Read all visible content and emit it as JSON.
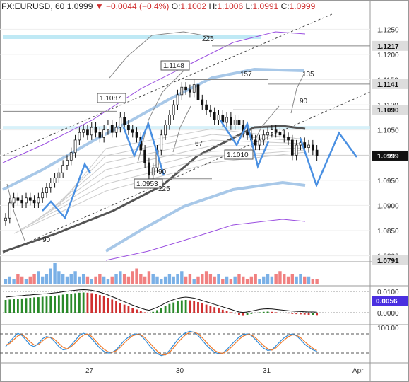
{
  "header": {
    "symbol": "FX:EURUSD, 60",
    "last": "1.0999",
    "arrow": "▼",
    "change": "−0.0044 (−0.4%)",
    "o_label": "O:",
    "o": "1.1002",
    "h_label": "H:",
    "h": "1.1006",
    "l_label": "L:",
    "l": "1.0991",
    "c_label": "C:",
    "c": "1.0999"
  },
  "chart_data": [
    {
      "type": "candlestick",
      "title": "FX:EURUSD, 60",
      "ylim": [
        1.0791,
        1.128
      ],
      "y_ticks": [
        "1.1250",
        "1.1200",
        "1.1150",
        "1.1100",
        "1.1050",
        "1.1000",
        "1.0950",
        "1.0900",
        "1.0850",
        "1.0800"
      ],
      "x_ticks": [
        "27",
        "30",
        "31",
        "Apr"
      ],
      "price_labels": [
        {
          "value": 1.1217,
          "text": "1.1217"
        },
        {
          "value": 1.1141,
          "text": "1.1141"
        },
        {
          "value": 1.109,
          "text": "1.1090"
        },
        {
          "value": 1.0999,
          "text": "1.0999",
          "current": true
        },
        {
          "value": 1.0791,
          "text": "1.0791"
        }
      ],
      "annotations": [
        {
          "text": "1.1148",
          "value": 1.1148
        },
        {
          "text": "1.1087",
          "value": 1.1087
        },
        {
          "text": "1.1010",
          "value": 1.101
        },
        {
          "text": "1.0953",
          "value": 1.0953
        }
      ],
      "cycle_labels": [
        "225",
        "157",
        "135",
        "90",
        "67",
        "90",
        "225",
        "90"
      ],
      "close": [
        1.0875,
        1.0905,
        1.0915,
        1.091,
        1.0905,
        1.0915,
        1.091,
        1.0905,
        1.0915,
        1.0925,
        1.0935,
        1.0945,
        1.0955,
        1.0965,
        1.098,
        1.099,
        1.1005,
        1.103,
        1.1045,
        1.105,
        1.104,
        1.1055,
        1.1045,
        1.1035,
        1.105,
        1.106,
        1.1045,
        1.1055,
        1.1075,
        1.106,
        1.105,
        1.1045,
        1.1035,
        1.101,
        1.0985,
        1.096,
        1.0975,
        1.101,
        1.104,
        1.106,
        1.108,
        1.11,
        1.112,
        1.1135,
        1.113,
        1.1125,
        1.114,
        1.111,
        1.11,
        1.109,
        1.1085,
        1.107,
        1.108,
        1.1065,
        1.1075,
        1.106,
        1.107,
        1.106,
        1.1045,
        1.104,
        1.103,
        1.102,
        1.103,
        1.104,
        1.1045,
        1.105,
        1.1045,
        1.104,
        1.1035,
        1.103,
        1.1,
        1.102,
        1.1025,
        1.1015,
        1.102,
        1.101,
        1.0999
      ],
      "series": [
        {
          "name": "Close",
          "values_ref": "close",
          "color": "#222222"
        }
      ]
    },
    {
      "type": "bar",
      "title": "",
      "values": [
        2,
        3,
        2,
        4,
        3,
        2,
        3,
        4,
        5,
        3,
        4,
        6,
        8,
        5,
        4,
        3,
        4,
        5,
        3,
        4,
        3,
        2,
        3,
        4,
        3,
        2,
        3,
        4,
        5,
        4,
        3,
        5,
        6,
        4,
        3,
        5,
        4,
        3,
        2,
        3,
        4,
        3,
        4,
        5,
        3,
        4,
        2,
        3,
        4,
        5,
        4,
        3,
        4,
        2,
        3,
        2,
        3,
        4,
        3,
        2,
        3,
        4,
        2,
        3,
        4,
        3,
        4,
        5,
        4,
        3,
        4,
        3,
        4,
        3,
        3,
        2,
        2
      ]
    },
    {
      "type": "bar",
      "title": "",
      "y_ticks": [
        "0.0100",
        "0.0000"
      ],
      "price_labels": [
        {
          "value": 0.0056,
          "text": "0.0056"
        }
      ],
      "values": [
        0.006,
        0.0062,
        0.0064,
        0.0066,
        0.0067,
        0.0069,
        0.007,
        0.0072,
        0.0073,
        0.0075,
        0.0076,
        0.0078,
        0.008,
        0.0082,
        0.0085,
        0.0088,
        0.009,
        0.0092,
        0.0094,
        0.0095,
        0.0094,
        0.0092,
        0.0088,
        0.0083,
        0.0077,
        0.007,
        0.0062,
        0.0055,
        0.0046,
        0.0038,
        0.003,
        0.0022,
        0.0015,
        0.0008,
        0.0002,
        -0.0002,
        0.0004,
        0.0012,
        0.0022,
        0.0032,
        0.0041,
        0.0048,
        0.0054,
        0.0058,
        0.006,
        0.0058,
        0.0055,
        0.005,
        0.0044,
        0.0038,
        0.0032,
        0.0026,
        0.002,
        0.0014,
        0.0008,
        0.0002,
        -0.0004,
        -0.001,
        -0.0012,
        -0.001,
        -0.0006,
        -0.0002,
        0.0002,
        0.0004,
        0.0005,
        0.0004,
        0.0002,
        0.0,
        -0.0002,
        -0.0004,
        -0.0006,
        -0.0007,
        -0.0008,
        -0.0009,
        -0.001,
        -0.001,
        -0.0011
      ]
    },
    {
      "type": "line",
      "title": "",
      "y_ticks": [
        "100.00"
      ],
      "series": [
        {
          "name": "",
          "color": "#2f8bd8",
          "values": [
            40,
            55,
            70,
            82,
            75,
            60,
            45,
            40,
            50,
            65,
            72,
            68,
            55,
            40,
            30,
            32,
            45,
            60,
            75,
            82,
            78,
            65,
            50,
            35,
            25,
            20,
            22,
            30,
            45,
            60,
            70,
            78,
            80,
            75,
            62,
            45,
            30,
            18,
            12,
            15,
            28,
            45,
            62,
            75,
            84,
            88,
            85,
            75,
            60,
            45,
            32,
            22,
            18,
            20,
            30,
            45,
            58,
            70,
            78,
            80,
            75,
            62,
            48,
            35,
            28,
            30,
            42,
            56,
            68,
            76,
            80,
            74,
            62,
            48,
            38,
            30,
            25
          ]
        },
        {
          "name": "",
          "color": "#f07a2a",
          "values": [
            45,
            50,
            62,
            74,
            78,
            68,
            55,
            45,
            46,
            58,
            68,
            70,
            62,
            50,
            38,
            33,
            40,
            52,
            66,
            76,
            80,
            72,
            58,
            44,
            32,
            24,
            22,
            27,
            38,
            52,
            64,
            74,
            78,
            77,
            68,
            54,
            40,
            26,
            16,
            14,
            22,
            36,
            52,
            66,
            78,
            85,
            86,
            80,
            68,
            54,
            40,
            28,
            21,
            19,
            25,
            37,
            50,
            63,
            73,
            78,
            77,
            68,
            56,
            43,
            33,
            29,
            36,
            49,
            61,
            71,
            77,
            76,
            68,
            56,
            45,
            35,
            28
          ]
        }
      ]
    }
  ],
  "colors": {
    "bull": "#2a8a2a",
    "bear": "#d03030",
    "blue": "#4a90e2",
    "purple": "#9a4ee0",
    "accent": "#4a2fe0"
  }
}
